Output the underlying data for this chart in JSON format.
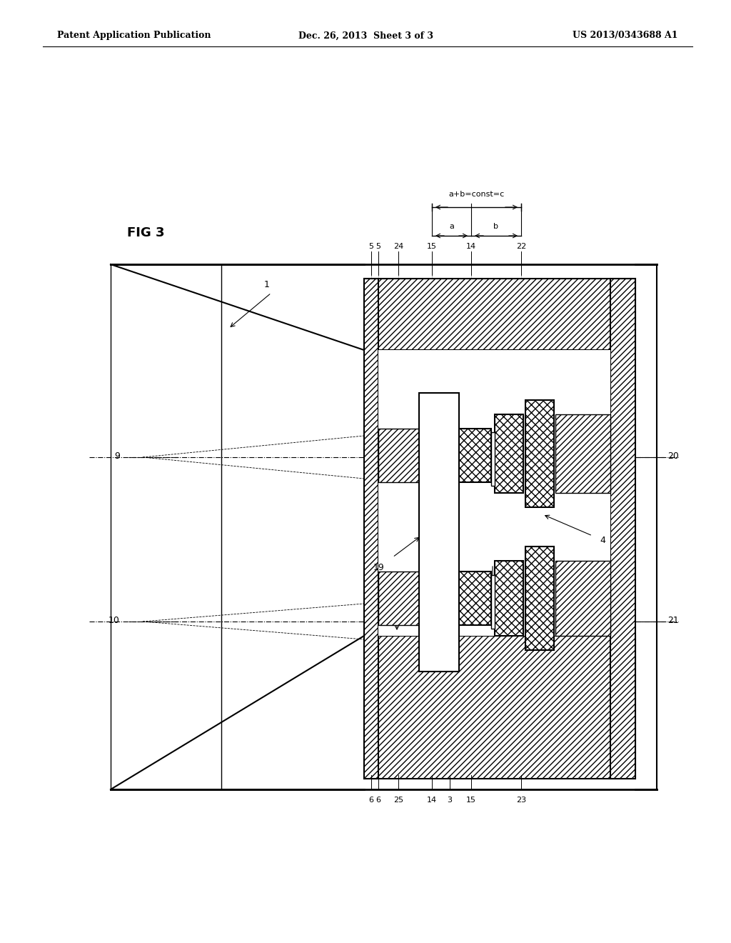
{
  "header_left": "Patent Application Publication",
  "header_mid": "Dec. 26, 2013  Sheet 3 of 3",
  "header_right": "US 2013/0343688 A1",
  "fig_label": "FIG 3",
  "annotation_eq": "a+b=const=c",
  "label_1": "1",
  "label_4": "4",
  "label_5": "5",
  "label_6": "6",
  "label_9": "9",
  "label_10": "10",
  "label_14": "14",
  "label_15": "15",
  "label_19": "19",
  "label_20": "20",
  "label_21": "21",
  "label_22": "22",
  "label_23": "23",
  "label_24": "24",
  "label_25": "25",
  "bg_color": "#ffffff",
  "line_color": "#000000",
  "hatch_color": "#000000"
}
